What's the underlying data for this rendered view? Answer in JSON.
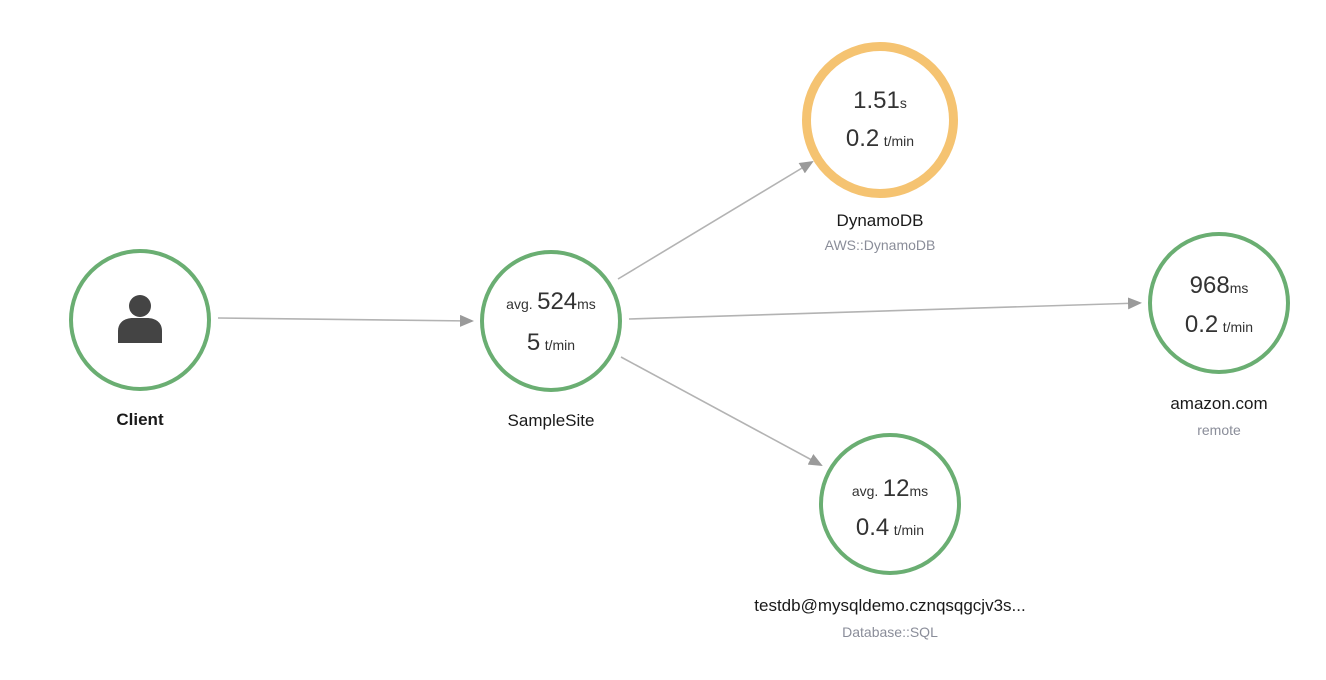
{
  "colors": {
    "healthy": "#6aae72",
    "warning": "#f5c371",
    "edge": "#b3b3b3",
    "edge_arrow": "#9a9a9a",
    "icon": "#444444"
  },
  "nodes": {
    "client": {
      "name": "Client",
      "icon": "user-icon"
    },
    "samplesite": {
      "name": "SampleSite",
      "latency_prefix": "avg.",
      "latency_value": "524",
      "latency_unit": "ms",
      "rate_value": "5",
      "rate_unit": "t/min"
    },
    "dynamodb": {
      "name": "DynamoDB",
      "type": "AWS::DynamoDB",
      "latency_value": "1.51",
      "latency_unit": "s",
      "rate_value": "0.2",
      "rate_unit": "t/min"
    },
    "amazon": {
      "name": "amazon.com",
      "type": "remote",
      "latency_value": "968",
      "latency_unit": "ms",
      "rate_value": "0.2",
      "rate_unit": "t/min"
    },
    "testdb": {
      "name": "testdb@mysqldemo.cznqsqgcjv3s...",
      "type": "Database::SQL",
      "latency_prefix": "avg.",
      "latency_value": "12",
      "latency_unit": "ms",
      "rate_value": "0.4",
      "rate_unit": "t/min"
    }
  }
}
